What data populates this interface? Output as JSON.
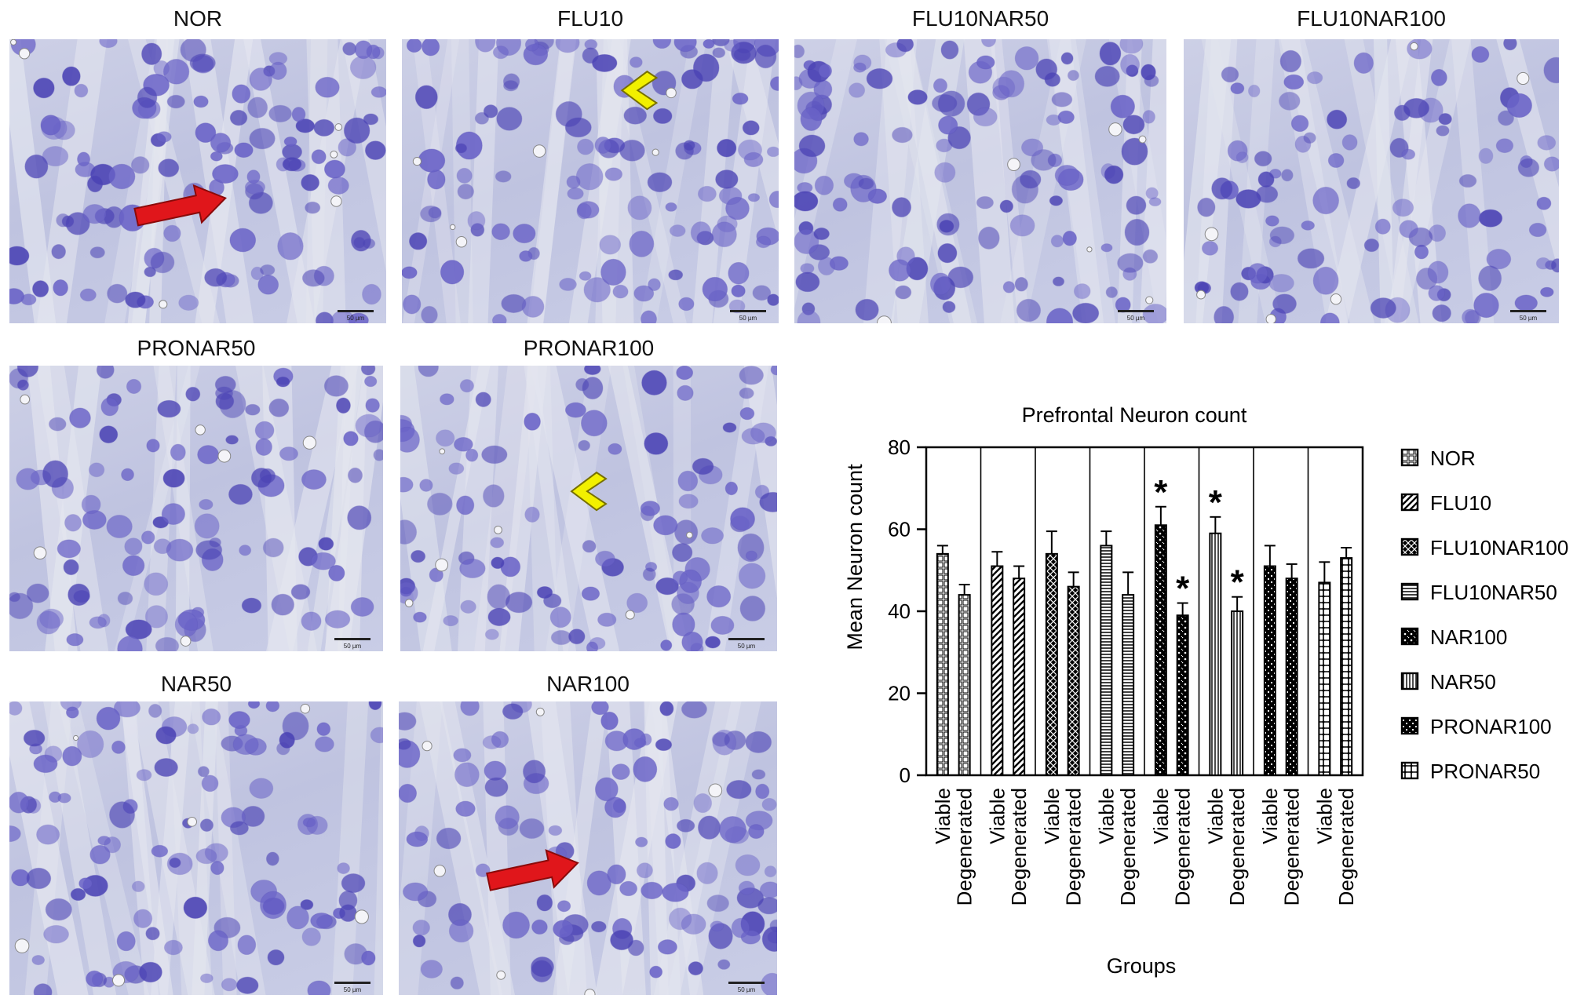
{
  "panels": [
    {
      "id": "nor",
      "label": "NOR",
      "marker": "red-arrow",
      "scale_label": "50 µm"
    },
    {
      "id": "flu10",
      "label": "FLU10",
      "marker": "yellow-arrowhead",
      "scale_label": "50 µm"
    },
    {
      "id": "flu10nar50",
      "label": "FLU10NAR50",
      "marker": "",
      "scale_label": "50 µm"
    },
    {
      "id": "flu10nar100",
      "label": "FLU10NAR100",
      "marker": "",
      "scale_label": "50 µm"
    },
    {
      "id": "pronar50",
      "label": "PRONAR50",
      "marker": "",
      "scale_label": "50 µm"
    },
    {
      "id": "pronar100",
      "label": "PRONAR100",
      "marker": "yellow-arrowhead",
      "scale_label": "50 µm"
    },
    {
      "id": "nar50",
      "label": "NAR50",
      "marker": "",
      "scale_label": "50 µm"
    },
    {
      "id": "nar100",
      "label": "NAR100",
      "marker": "red-arrow",
      "scale_label": "50 µm"
    }
  ],
  "colors": {
    "stain_background": "#c4c8e3",
    "nucleus": "#6a63c8",
    "nucleus_dark": "#4b43b5",
    "arrow_red": "#e0161b",
    "arrowhead_yellow": "#f2f000",
    "bar_border": "#000000"
  },
  "chart_data": {
    "type": "bar",
    "title": "Prefrontal Neuron count",
    "xlabel": "Groups",
    "ylabel": "Mean Neuron count",
    "ylim": [
      0,
      80
    ],
    "yticks": [
      "0",
      "20",
      "40",
      "60",
      "80"
    ],
    "grid": false,
    "legend_position": "right",
    "legend": [
      "NOR",
      "FLU10",
      "FLU10NAR100",
      "FLU10NAR50",
      "NAR100",
      "NAR50",
      "PRONAR100",
      "PRONAR50"
    ],
    "categories": [
      "Viable",
      "Degenerated",
      "Viable",
      "Degenerated",
      "Viable",
      "Degenerated",
      "Viable",
      "Degenerated",
      "Viable",
      "Degenerated",
      "Viable",
      "Degenerated",
      "Viable",
      "Degenerated",
      "Viable",
      "Degenerated"
    ],
    "group_of_category": [
      "NOR",
      "NOR",
      "FLU10",
      "FLU10",
      "FLU10NAR100",
      "FLU10NAR100",
      "FLU10NAR50",
      "FLU10NAR50",
      "NAR100",
      "NAR100",
      "NAR50",
      "NAR50",
      "PRONAR100",
      "PRONAR100",
      "PRONAR50",
      "PRONAR50"
    ],
    "values": [
      54,
      44,
      51,
      48,
      54,
      46,
      56,
      44,
      61,
      39,
      59,
      40,
      51,
      48,
      47,
      53
    ],
    "errors": [
      2,
      2.5,
      3.5,
      3,
      5.5,
      3.5,
      3.5,
      5.5,
      4.5,
      3,
      4,
      3.5,
      5,
      3.5,
      5,
      2.5
    ],
    "significance": [
      "",
      "",
      "",
      "",
      "",
      "",
      "",
      "",
      "*",
      "*",
      "*",
      "*",
      "",
      "",
      "",
      ""
    ]
  }
}
